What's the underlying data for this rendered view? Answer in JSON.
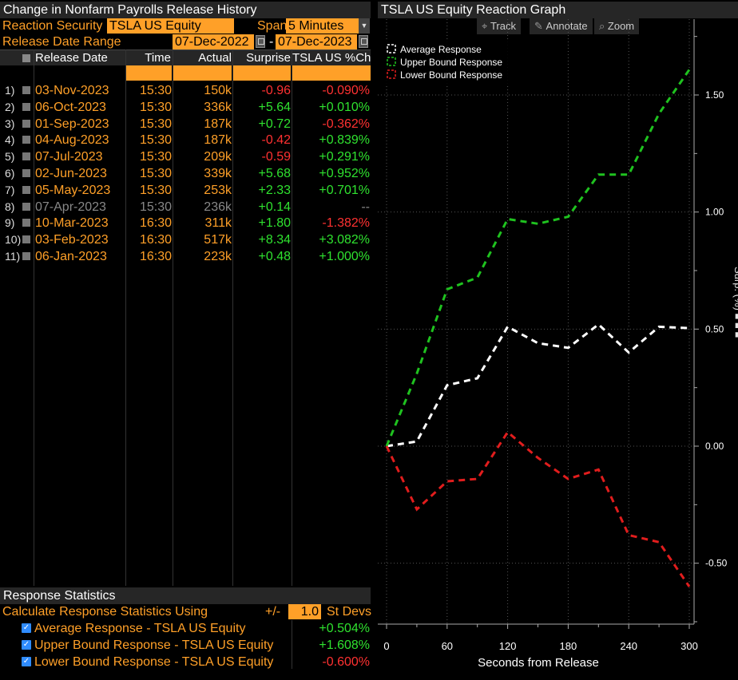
{
  "left_panel": {
    "title": "Change in Nonfarm Payrolls Release History",
    "reaction_security_label": "Reaction Security",
    "reaction_security_value": "TSLA US Equity",
    "span_label": "Span",
    "span_value": "5 Minutes",
    "date_range_label": "Release Date Range",
    "date_from": "07-Dec-2022",
    "date_sep": "-",
    "date_to": "07-Dec-2023",
    "columns": [
      "Release Date",
      "Time",
      "Actual",
      "Surprise",
      "TSLA US %Chg"
    ],
    "rows": [
      {
        "idx": "1)",
        "date": "03-Nov-2023",
        "time": "15:30",
        "actual": "150k",
        "surprise": "-0.96",
        "chg": "-0.090%",
        "s": "red",
        "c": "red",
        "dim": false
      },
      {
        "idx": "2)",
        "date": "06-Oct-2023",
        "time": "15:30",
        "actual": "336k",
        "surprise": "+5.64",
        "chg": "+0.010%",
        "s": "grn",
        "c": "grn",
        "dim": false
      },
      {
        "idx": "3)",
        "date": "01-Sep-2023",
        "time": "15:30",
        "actual": "187k",
        "surprise": "+0.72",
        "chg": "-0.362%",
        "s": "grn",
        "c": "red",
        "dim": false
      },
      {
        "idx": "4)",
        "date": "04-Aug-2023",
        "time": "15:30",
        "actual": "187k",
        "surprise": "-0.42",
        "chg": "+0.839%",
        "s": "red",
        "c": "grn",
        "dim": false
      },
      {
        "idx": "5)",
        "date": "07-Jul-2023",
        "time": "15:30",
        "actual": "209k",
        "surprise": "-0.59",
        "chg": "+0.291%",
        "s": "red",
        "c": "grn",
        "dim": false
      },
      {
        "idx": "6)",
        "date": "02-Jun-2023",
        "time": "15:30",
        "actual": "339k",
        "surprise": "+5.68",
        "chg": "+0.952%",
        "s": "grn",
        "c": "grn",
        "dim": false
      },
      {
        "idx": "7)",
        "date": "05-May-2023",
        "time": "15:30",
        "actual": "253k",
        "surprise": "+2.33",
        "chg": "+0.701%",
        "s": "grn",
        "c": "grn",
        "dim": false
      },
      {
        "idx": "8)",
        "date": "07-Apr-2023",
        "time": "15:30",
        "actual": "236k",
        "surprise": "+0.14",
        "chg": "--",
        "s": "grn",
        "c": "gry",
        "dim": true
      },
      {
        "idx": "9)",
        "date": "10-Mar-2023",
        "time": "16:30",
        "actual": "311k",
        "surprise": "+1.80",
        "chg": "-1.382%",
        "s": "grn",
        "c": "red",
        "dim": false
      },
      {
        "idx": "10)",
        "date": "03-Feb-2023",
        "time": "16:30",
        "actual": "517k",
        "surprise": "+8.34",
        "chg": "+3.082%",
        "s": "grn",
        "c": "grn",
        "dim": false
      },
      {
        "idx": "11)",
        "date": "06-Jan-2023",
        "time": "16:30",
        "actual": "223k",
        "surprise": "+0.48",
        "chg": "+1.000%",
        "s": "grn",
        "c": "grn",
        "dim": false
      }
    ]
  },
  "stats": {
    "title": "Response Statistics",
    "calc_label": "Calculate Response Statistics Using",
    "pm_label": "+/-",
    "stdev_value": "1.0",
    "stdev_label": "St Devs",
    "items": [
      {
        "label": "Average Response - TSLA US Equity",
        "value": "+0.504%",
        "color": "grn"
      },
      {
        "label": "Upper Bound Response - TSLA US Equity",
        "value": "+1.608%",
        "color": "grn"
      },
      {
        "label": "Lower Bound Response - TSLA US Equity",
        "value": "-0.600%",
        "color": "red"
      }
    ]
  },
  "graph": {
    "title": "TSLA US Equity Reaction Graph",
    "tools": [
      "Track",
      "Annotate",
      "Zoom"
    ],
    "tool_icons": [
      "crosshair-icon",
      "pencil-icon",
      "magnifier-icon"
    ]
  },
  "chart_data": {
    "type": "line",
    "xlabel": "Seconds from Release",
    "ylabel": "Surp. (partially visible)",
    "xlim": [
      0,
      300
    ],
    "ylim": [
      -0.75,
      1.75
    ],
    "xticks": [
      0,
      60,
      120,
      180,
      240,
      300
    ],
    "yticks": [
      -0.5,
      0.0,
      0.5,
      1.0,
      1.5
    ],
    "ytick_labels": [
      "-0.50",
      "0.00",
      "0.50",
      "1.00",
      "1.50"
    ],
    "grid": true,
    "legend_position": "top-left",
    "x": [
      0,
      30,
      60,
      90,
      120,
      150,
      180,
      210,
      240,
      270,
      300
    ],
    "series": [
      {
        "name": "Average Response",
        "color": "#ffffff",
        "values": [
          0.0,
          0.02,
          0.26,
          0.29,
          0.51,
          0.44,
          0.42,
          0.52,
          0.4,
          0.51,
          0.504
        ]
      },
      {
        "name": "Upper Bound Response",
        "color": "#1fc21f",
        "values": [
          0.0,
          0.31,
          0.67,
          0.72,
          0.97,
          0.95,
          0.98,
          1.16,
          1.16,
          1.42,
          1.608
        ]
      },
      {
        "name": "Lower Bound Response",
        "color": "#e11d1d",
        "values": [
          0.0,
          -0.27,
          -0.15,
          -0.14,
          0.06,
          -0.05,
          -0.14,
          -0.1,
          -0.38,
          -0.41,
          -0.6
        ]
      }
    ]
  }
}
